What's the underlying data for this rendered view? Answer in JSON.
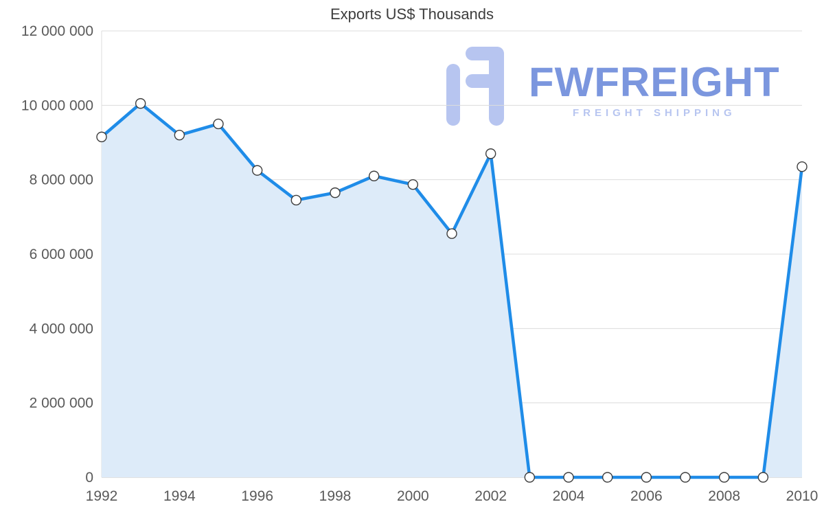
{
  "chart": {
    "title": "Exports US$ Thousands"
  },
  "watermark": {
    "name": "FWFREIGHT",
    "tagline": "FREIGHT SHIPPING",
    "brand_color": "#7b96de",
    "icon_color": "#b7c5f0",
    "tagline_color": "#b7c5f0"
  },
  "chart_data": {
    "type": "area",
    "title": "Exports US$ Thousands",
    "x": [
      1992,
      1993,
      1994,
      1995,
      1996,
      1997,
      1998,
      1999,
      2000,
      2001,
      2002,
      2003,
      2004,
      2005,
      2006,
      2007,
      2008,
      2009,
      2010
    ],
    "values": [
      9150000,
      10050000,
      9200000,
      9500000,
      8250000,
      7450000,
      7650000,
      8100000,
      7870000,
      6550000,
      8700000,
      0,
      0,
      0,
      0,
      0,
      0,
      0,
      8350000
    ],
    "xlabel": "",
    "ylabel": "",
    "ylim": [
      0,
      12000000
    ],
    "ytick_step": 2000000,
    "xtick_step": 2,
    "grid": "horizontal",
    "legend": "none",
    "line_color": "#1f8ce8",
    "fill_color": "#ddebf9",
    "marker": "white-circle-dark-outline"
  }
}
